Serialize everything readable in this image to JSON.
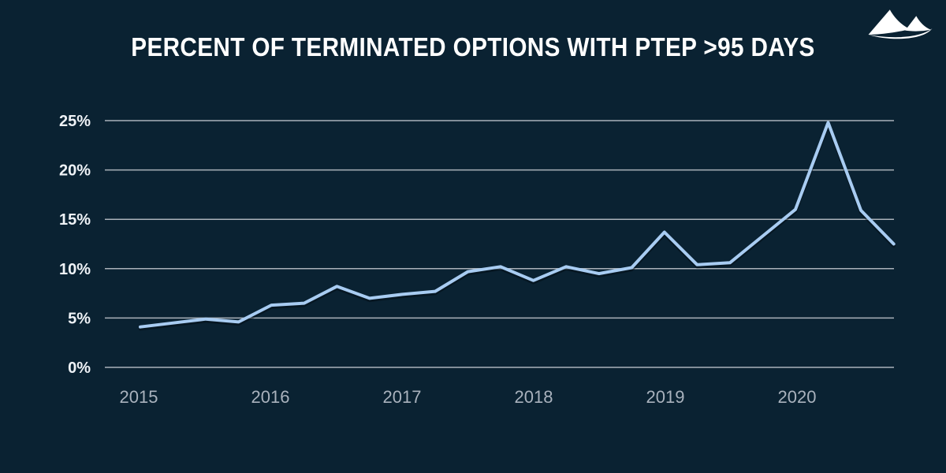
{
  "header": {
    "title": "PERCENT OF TERMINATED OPTIONS WITH PTEP >95 DAYS",
    "logo": "mountain-logo"
  },
  "colors": {
    "background": "#0a2232",
    "title_text": "#ffffff",
    "line": "#a8ccf2",
    "gridline": "#c7ccd2",
    "y_tick_text": "#eef2f6",
    "x_tick_text": "#a9b2bd"
  },
  "chart_data": {
    "type": "line",
    "title": "PERCENT OF TERMINATED OPTIONS WITH PTEP >95 DAYS",
    "unit": "%",
    "x": [
      "2015 Q1",
      "2015 Q2",
      "2015 Q3",
      "2015 Q4",
      "2016 Q1",
      "2016 Q2",
      "2016 Q3",
      "2016 Q4",
      "2017 Q1",
      "2017 Q2",
      "2017 Q3",
      "2017 Q4",
      "2018 Q1",
      "2018 Q2",
      "2018 Q3",
      "2018 Q4",
      "2019 Q1",
      "2019 Q2",
      "2019 Q3",
      "2019 Q4",
      "2020 Q1",
      "2020 Q2",
      "2020 Q3",
      "2020 Q4"
    ],
    "values": [
      4.1,
      4.5,
      4.9,
      4.6,
      6.3,
      6.5,
      8.2,
      7.0,
      7.4,
      7.7,
      9.7,
      10.2,
      8.8,
      10.2,
      9.5,
      10.1,
      13.7,
      10.4,
      10.6,
      13.3,
      16.0,
      24.8,
      15.9,
      12.5
    ],
    "x_tick_labels": [
      "2015",
      "2016",
      "2017",
      "2018",
      "2019",
      "2020"
    ],
    "y_ticks": [
      0,
      5,
      10,
      15,
      20,
      25
    ],
    "y_tick_labels": [
      "0%",
      "5%",
      "10%",
      "15%",
      "20%",
      "25%"
    ],
    "ylim": [
      0,
      25
    ],
    "grid": "horizontal",
    "legend": "none",
    "xlabel": "",
    "ylabel": ""
  }
}
